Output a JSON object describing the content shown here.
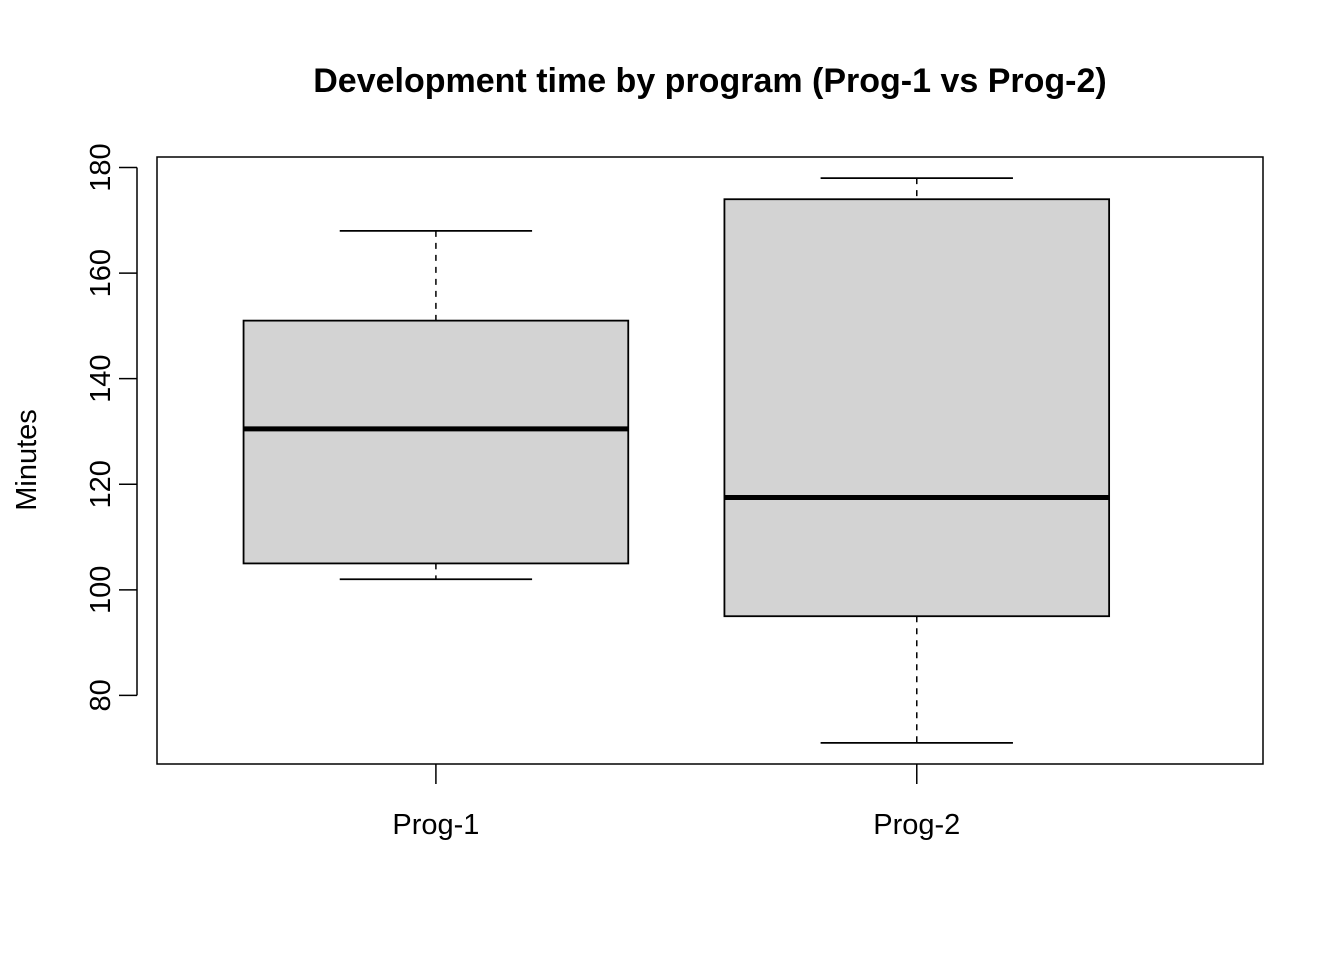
{
  "chart_data": {
    "type": "boxplot",
    "title": "Development time by program (Prog-1 vs Prog-2)",
    "xlabel": "",
    "ylabel": "Minutes",
    "ylim": [
      67,
      182
    ],
    "yticks": [
      80,
      100,
      120,
      140,
      160,
      180
    ],
    "categories": [
      "Prog-1",
      "Prog-2"
    ],
    "boxes": [
      {
        "category": "Prog-1",
        "whisker_low": 102,
        "q1": 105,
        "median": 130.5,
        "q3": 151,
        "whisker_high": 168
      },
      {
        "category": "Prog-2",
        "whisker_low": 71,
        "q1": 95,
        "median": 117.5,
        "q3": 174,
        "whisker_high": 178
      }
    ],
    "box_fill": "#d3d3d3",
    "line_color": "#000000",
    "grid": false,
    "legend": "none"
  }
}
